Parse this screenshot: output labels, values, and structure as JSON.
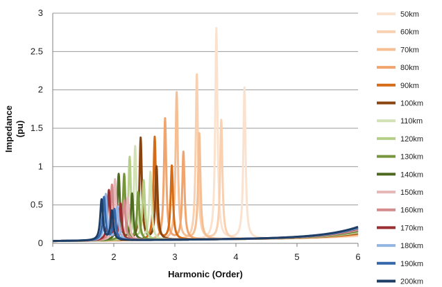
{
  "chart_data": {
    "type": "line",
    "xlabel": "Harmonic (Order)",
    "ylabel_lines": [
      "Impedance",
      "(pu)"
    ],
    "xlim": [
      1,
      6
    ],
    "ylim": [
      0,
      3
    ],
    "x_ticks": [
      "1",
      "2",
      "3",
      "4",
      "5",
      "6"
    ],
    "y_ticks": [
      "0",
      "0.5",
      "1",
      "1.5",
      "2",
      "2.5",
      "3"
    ],
    "grid": "horizontal",
    "legend_position": "right",
    "series": [
      {
        "name": "50km",
        "color": "#fbe2cf",
        "peaks": [
          [
            3.68,
            2.75
          ],
          [
            4.14,
            1.97
          ]
        ]
      },
      {
        "name": "60km",
        "color": "#f9d0b0",
        "peaks": [
          [
            3.36,
            2.15
          ],
          [
            3.76,
            1.55
          ]
        ]
      },
      {
        "name": "70km",
        "color": "#f6be93",
        "peaks": [
          [
            3.03,
            1.92
          ],
          [
            3.4,
            1.38
          ]
        ]
      },
      {
        "name": "80km",
        "color": "#f0a56f",
        "peaks": [
          [
            2.84,
            1.58
          ],
          [
            3.14,
            1.14
          ]
        ]
      },
      {
        "name": "90km",
        "color": "#d56c17",
        "peaks": [
          [
            2.67,
            1.34
          ],
          [
            2.95,
            0.96
          ]
        ]
      },
      {
        "name": "100km",
        "color": "#8a4410",
        "peaks": [
          [
            2.44,
            1.33
          ],
          [
            2.7,
            0.95
          ]
        ]
      },
      {
        "name": "110km",
        "color": "#d3e2b5",
        "peaks": [
          [
            2.35,
            1.22
          ],
          [
            2.6,
            0.88
          ]
        ]
      },
      {
        "name": "120km",
        "color": "#b6cf88",
        "peaks": [
          [
            2.26,
            1.08
          ],
          [
            2.49,
            0.77
          ]
        ]
      },
      {
        "name": "130km",
        "color": "#77963b",
        "peaks": [
          [
            2.17,
            0.86
          ],
          [
            2.4,
            0.62
          ]
        ]
      },
      {
        "name": "140km",
        "color": "#4e6a20",
        "peaks": [
          [
            2.08,
            0.86
          ],
          [
            2.3,
            0.6
          ]
        ]
      },
      {
        "name": "150km",
        "color": "#e6b8b8",
        "peaks": [
          [
            2.02,
            0.79
          ],
          [
            2.23,
            0.55
          ]
        ]
      },
      {
        "name": "160km",
        "color": "#d48b8b",
        "peaks": [
          [
            1.97,
            0.72
          ],
          [
            2.17,
            0.51
          ]
        ]
      },
      {
        "name": "170km",
        "color": "#9c2f33",
        "peaks": [
          [
            1.92,
            0.65
          ],
          [
            2.11,
            0.47
          ]
        ]
      },
      {
        "name": "180km",
        "color": "#92b5e3",
        "peaks": [
          [
            1.87,
            0.6
          ],
          [
            2.06,
            0.43
          ]
        ]
      },
      {
        "name": "190km",
        "color": "#3468aa",
        "peaks": [
          [
            1.84,
            0.56
          ],
          [
            2.01,
            0.4
          ]
        ]
      },
      {
        "name": "200km",
        "color": "#1f3e65",
        "peaks": [
          [
            1.8,
            0.53
          ],
          [
            1.97,
            0.38
          ]
        ]
      }
    ]
  }
}
